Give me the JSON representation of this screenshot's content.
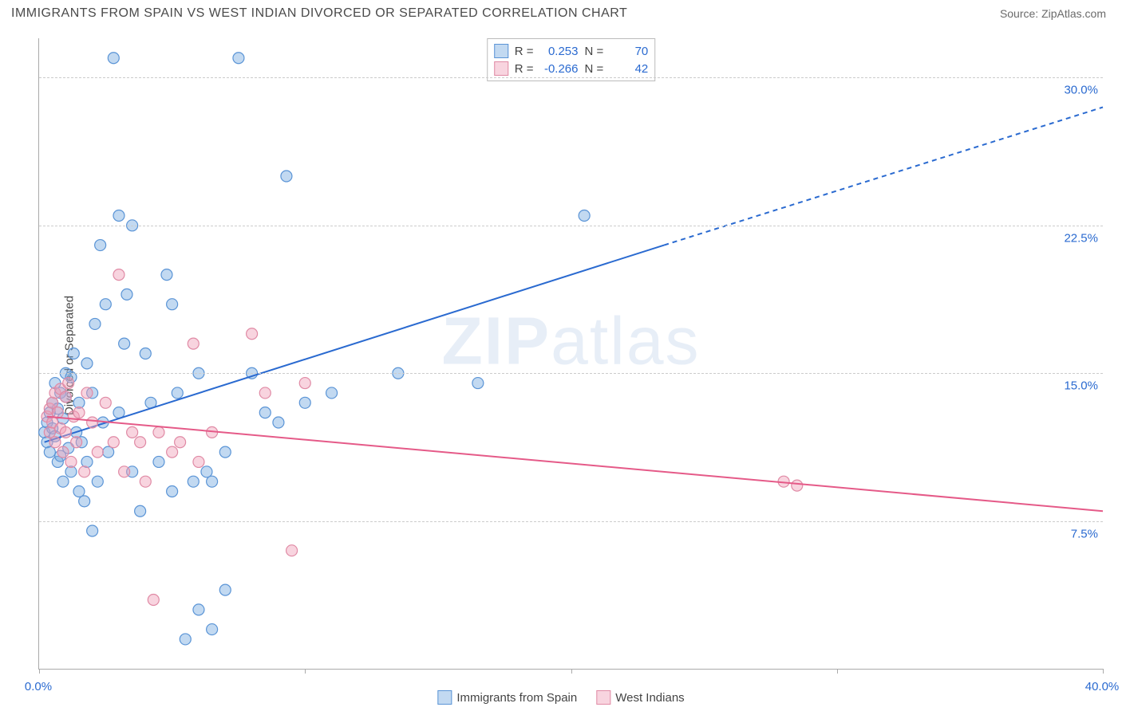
{
  "title": "IMMIGRANTS FROM SPAIN VS WEST INDIAN DIVORCED OR SEPARATED CORRELATION CHART",
  "source": "Source: ZipAtlas.com",
  "watermark": "ZIPatlas",
  "chart": {
    "type": "scatter",
    "y_axis_label": "Divorced or Separated",
    "background_color": "#ffffff",
    "grid_color": "#cccccc",
    "axis_color": "#aaaaaa",
    "xlim": [
      0,
      40
    ],
    "ylim": [
      0,
      32
    ],
    "x_ticks": [
      0,
      10,
      20,
      30,
      40
    ],
    "x_tick_labels_shown": {
      "0": "0.0%",
      "40": "40.0%"
    },
    "y_ticks": [
      7.5,
      15.0,
      22.5,
      30.0
    ],
    "y_tick_labels": [
      "7.5%",
      "15.0%",
      "22.5%",
      "30.0%"
    ],
    "tick_label_color": "#2a6ad0",
    "tick_label_fontsize": 15,
    "marker_radius": 7,
    "marker_stroke_width": 1.2,
    "series": [
      {
        "name": "Immigrants from Spain",
        "color_fill": "rgba(120,170,225,0.45)",
        "color_stroke": "#5a94d6",
        "line_color": "#2a6ad0",
        "line_width": 2,
        "line_dash_extrapolate": true,
        "R": "0.253",
        "N": "70",
        "points": [
          [
            0.2,
            12.0
          ],
          [
            0.3,
            11.5
          ],
          [
            0.3,
            12.5
          ],
          [
            0.4,
            13.0
          ],
          [
            0.4,
            11.0
          ],
          [
            0.5,
            13.5
          ],
          [
            0.5,
            12.2
          ],
          [
            0.6,
            11.8
          ],
          [
            0.6,
            14.5
          ],
          [
            0.7,
            10.5
          ],
          [
            0.7,
            13.2
          ],
          [
            0.8,
            14.0
          ],
          [
            0.8,
            10.8
          ],
          [
            0.9,
            12.7
          ],
          [
            0.9,
            9.5
          ],
          [
            1.0,
            13.8
          ],
          [
            1.0,
            15.0
          ],
          [
            1.1,
            11.2
          ],
          [
            1.2,
            10.0
          ],
          [
            1.2,
            14.8
          ],
          [
            1.3,
            16.0
          ],
          [
            1.4,
            12.0
          ],
          [
            1.5,
            9.0
          ],
          [
            1.5,
            13.5
          ],
          [
            1.6,
            11.5
          ],
          [
            1.7,
            8.5
          ],
          [
            1.8,
            15.5
          ],
          [
            1.8,
            10.5
          ],
          [
            2.0,
            14.0
          ],
          [
            2.0,
            7.0
          ],
          [
            2.1,
            17.5
          ],
          [
            2.2,
            9.5
          ],
          [
            2.3,
            21.5
          ],
          [
            2.4,
            12.5
          ],
          [
            2.5,
            18.5
          ],
          [
            2.6,
            11.0
          ],
          [
            2.8,
            31.0
          ],
          [
            3.0,
            23.0
          ],
          [
            3.0,
            13.0
          ],
          [
            3.2,
            16.5
          ],
          [
            3.3,
            19.0
          ],
          [
            3.5,
            22.5
          ],
          [
            3.5,
            10.0
          ],
          [
            3.8,
            8.0
          ],
          [
            4.0,
            16.0
          ],
          [
            4.2,
            13.5
          ],
          [
            4.5,
            10.5
          ],
          [
            4.8,
            20.0
          ],
          [
            5.0,
            9.0
          ],
          [
            5.0,
            18.5
          ],
          [
            5.2,
            14.0
          ],
          [
            5.5,
            1.5
          ],
          [
            5.8,
            9.5
          ],
          [
            6.0,
            15.0
          ],
          [
            6.0,
            3.0
          ],
          [
            6.3,
            10.0
          ],
          [
            6.5,
            2.0
          ],
          [
            6.5,
            9.5
          ],
          [
            7.0,
            4.0
          ],
          [
            7.0,
            11.0
          ],
          [
            7.5,
            31.0
          ],
          [
            8.0,
            15.0
          ],
          [
            8.5,
            13.0
          ],
          [
            9.0,
            12.5
          ],
          [
            9.3,
            25.0
          ],
          [
            10.0,
            13.5
          ],
          [
            11.0,
            14.0
          ],
          [
            13.5,
            15.0
          ],
          [
            16.5,
            14.5
          ],
          [
            20.5,
            23.0
          ]
        ],
        "trend_line": {
          "x1": 0.2,
          "y1": 11.5,
          "x2": 23.5,
          "y2": 21.5,
          "x_ext": 40,
          "y_ext": 28.5
        }
      },
      {
        "name": "West Indians",
        "color_fill": "rgba(240,160,185,0.45)",
        "color_stroke": "#e08aa5",
        "line_color": "#e55a88",
        "line_width": 2,
        "line_dash_extrapolate": false,
        "R": "-0.266",
        "N": "42",
        "points": [
          [
            0.3,
            12.8
          ],
          [
            0.4,
            13.2
          ],
          [
            0.4,
            12.0
          ],
          [
            0.5,
            13.5
          ],
          [
            0.5,
            12.5
          ],
          [
            0.6,
            14.0
          ],
          [
            0.6,
            11.5
          ],
          [
            0.7,
            13.0
          ],
          [
            0.8,
            14.2
          ],
          [
            0.8,
            12.2
          ],
          [
            0.9,
            11.0
          ],
          [
            1.0,
            13.8
          ],
          [
            1.0,
            12.0
          ],
          [
            1.1,
            14.5
          ],
          [
            1.2,
            10.5
          ],
          [
            1.3,
            12.8
          ],
          [
            1.4,
            11.5
          ],
          [
            1.5,
            13.0
          ],
          [
            1.7,
            10.0
          ],
          [
            1.8,
            14.0
          ],
          [
            2.0,
            12.5
          ],
          [
            2.2,
            11.0
          ],
          [
            2.5,
            13.5
          ],
          [
            2.8,
            11.5
          ],
          [
            3.0,
            20.0
          ],
          [
            3.2,
            10.0
          ],
          [
            3.5,
            12.0
          ],
          [
            3.8,
            11.5
          ],
          [
            4.0,
            9.5
          ],
          [
            4.3,
            3.5
          ],
          [
            4.5,
            12.0
          ],
          [
            5.0,
            11.0
          ],
          [
            5.3,
            11.5
          ],
          [
            5.8,
            16.5
          ],
          [
            6.0,
            10.5
          ],
          [
            6.5,
            12.0
          ],
          [
            8.0,
            17.0
          ],
          [
            8.5,
            14.0
          ],
          [
            9.5,
            6.0
          ],
          [
            10.0,
            14.5
          ],
          [
            28.0,
            9.5
          ],
          [
            28.5,
            9.3
          ]
        ],
        "trend_line": {
          "x1": 0.3,
          "y1": 12.8,
          "x2": 40,
          "y2": 8.0
        }
      }
    ]
  },
  "legend": {
    "stats_rows": [
      {
        "swatch_fill": "rgba(120,170,225,0.45)",
        "swatch_stroke": "#5a94d6",
        "R_label": "R =",
        "R": "0.253",
        "N_label": "N =",
        "N": "70"
      },
      {
        "swatch_fill": "rgba(240,160,185,0.45)",
        "swatch_stroke": "#e08aa5",
        "R_label": "R =",
        "R": "-0.266",
        "N_label": "N =",
        "N": "42"
      }
    ],
    "series_items": [
      {
        "swatch_fill": "rgba(120,170,225,0.45)",
        "swatch_stroke": "#5a94d6",
        "label": "Immigrants from Spain"
      },
      {
        "swatch_fill": "rgba(240,160,185,0.45)",
        "swatch_stroke": "#e08aa5",
        "label": "West Indians"
      }
    ]
  }
}
